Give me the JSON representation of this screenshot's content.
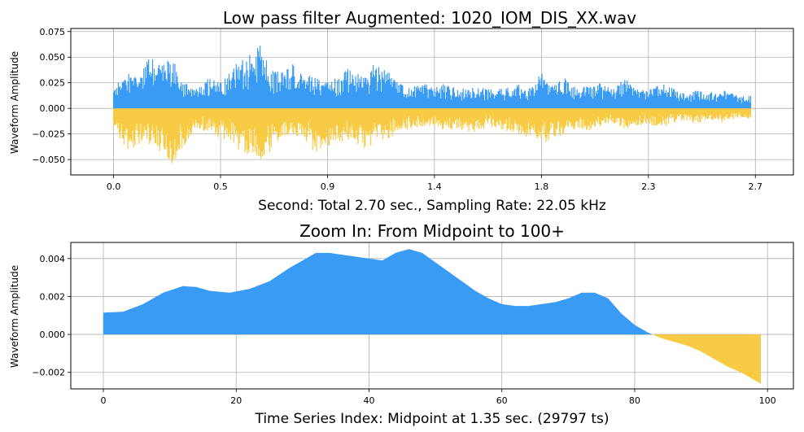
{
  "chart_data": [
    {
      "type": "area",
      "title": "Low pass filter Augmented: 1020_IOM_DIS_XX.wav",
      "xlabel": "Second: Total 2.70 sec., Sampling Rate: 22.05 kHz",
      "ylabel": "Waveform Amplitude",
      "xlim": [
        -0.18,
        2.86
      ],
      "ylim": [
        -0.065,
        0.078
      ],
      "x_tick_labels": [
        "0.0",
        "0.5",
        "0.9",
        "1.4",
        "1.8",
        "2.3",
        "2.7"
      ],
      "x_tick_values": [
        0.0,
        0.45,
        0.9,
        1.35,
        1.8,
        2.25,
        2.7
      ],
      "y_tick_labels": [
        "0.075",
        "0.050",
        "0.025",
        "0.000",
        "−0.025",
        "−0.050"
      ],
      "y_tick_values": [
        0.075,
        0.05,
        0.025,
        0.0,
        -0.025,
        -0.05
      ],
      "grid": true,
      "colors": {
        "positive": "#3a9bf5",
        "negative": "#f8cb45"
      },
      "envelope": {
        "x": [
          0.0,
          0.05,
          0.1,
          0.15,
          0.2,
          0.25,
          0.3,
          0.35,
          0.4,
          0.45,
          0.5,
          0.55,
          0.6,
          0.62,
          0.65,
          0.7,
          0.75,
          0.8,
          0.85,
          0.9,
          0.95,
          1.0,
          1.05,
          1.1,
          1.15,
          1.2,
          1.25,
          1.3,
          1.35,
          1.4,
          1.45,
          1.5,
          1.55,
          1.6,
          1.65,
          1.7,
          1.75,
          1.8,
          1.85,
          1.9,
          1.95,
          2.0,
          2.05,
          2.1,
          2.15,
          2.2,
          2.25,
          2.3,
          2.35,
          2.4,
          2.45,
          2.5,
          2.55,
          2.6,
          2.65,
          2.68
        ],
        "pos": [
          0.02,
          0.035,
          0.03,
          0.05,
          0.045,
          0.05,
          0.025,
          0.02,
          0.03,
          0.025,
          0.04,
          0.05,
          0.055,
          0.07,
          0.04,
          0.035,
          0.045,
          0.035,
          0.03,
          0.025,
          0.035,
          0.04,
          0.03,
          0.045,
          0.04,
          0.025,
          0.02,
          0.025,
          0.02,
          0.025,
          0.018,
          0.022,
          0.02,
          0.018,
          0.02,
          0.025,
          0.02,
          0.035,
          0.025,
          0.03,
          0.02,
          0.022,
          0.025,
          0.018,
          0.03,
          0.02,
          0.018,
          0.025,
          0.02,
          0.015,
          0.018,
          0.015,
          0.02,
          0.015,
          0.012,
          0.015
        ],
        "neg": [
          -0.02,
          -0.04,
          -0.04,
          -0.035,
          -0.045,
          -0.055,
          -0.035,
          -0.02,
          -0.025,
          -0.03,
          -0.035,
          -0.045,
          -0.05,
          -0.055,
          -0.045,
          -0.03,
          -0.025,
          -0.03,
          -0.045,
          -0.04,
          -0.035,
          -0.03,
          -0.04,
          -0.035,
          -0.03,
          -0.025,
          -0.02,
          -0.018,
          -0.02,
          -0.022,
          -0.02,
          -0.025,
          -0.02,
          -0.018,
          -0.022,
          -0.025,
          -0.03,
          -0.035,
          -0.03,
          -0.025,
          -0.02,
          -0.022,
          -0.018,
          -0.015,
          -0.02,
          -0.018,
          -0.015,
          -0.02,
          -0.015,
          -0.012,
          -0.015,
          -0.012,
          -0.015,
          -0.012,
          -0.01,
          -0.012
        ]
      }
    },
    {
      "type": "area",
      "title": "Zoom In: From Midpoint to 100+",
      "xlabel": "Time Series Index: Midpoint at 1.35 sec. (29797 ts)",
      "ylabel": "Waveform Amplitude",
      "xlim": [
        -4.9,
        103.9
      ],
      "ylim": [
        -0.00287,
        0.00485
      ],
      "x_tick_labels": [
        "0",
        "20",
        "40",
        "60",
        "80",
        "100"
      ],
      "x_tick_values": [
        0,
        20,
        40,
        60,
        80,
        100
      ],
      "y_tick_labels": [
        "0.004",
        "0.002",
        "0.000",
        "−0.002"
      ],
      "y_tick_values": [
        0.004,
        0.002,
        0.0,
        -0.002
      ],
      "grid": true,
      "colors": {
        "positive": "#3a9bf5",
        "negative": "#f8cb45"
      },
      "x": [
        0,
        3,
        6,
        9,
        12,
        14,
        16,
        19,
        22,
        25,
        28,
        30,
        32,
        34,
        36,
        38,
        40,
        42,
        44,
        46,
        48,
        50,
        52,
        54,
        56,
        58,
        60,
        62,
        64,
        66,
        68,
        70,
        72,
        74,
        76,
        78,
        80,
        82,
        84,
        86,
        88,
        90,
        92,
        94,
        96,
        98,
        99
      ],
      "y": [
        0.00115,
        0.0012,
        0.0016,
        0.0022,
        0.00255,
        0.0025,
        0.0023,
        0.0022,
        0.0024,
        0.0028,
        0.0035,
        0.0039,
        0.0043,
        0.0043,
        0.0042,
        0.0041,
        0.004,
        0.0039,
        0.0043,
        0.0045,
        0.0043,
        0.0038,
        0.0033,
        0.0028,
        0.0023,
        0.0019,
        0.0016,
        0.0015,
        0.0015,
        0.0016,
        0.0017,
        0.0019,
        0.0022,
        0.0022,
        0.0019,
        0.0011,
        0.0005,
        0.0001,
        -0.0002,
        -0.0004,
        -0.0006,
        -0.0009,
        -0.0013,
        -0.0017,
        -0.002,
        -0.0024,
        -0.0026
      ]
    }
  ]
}
